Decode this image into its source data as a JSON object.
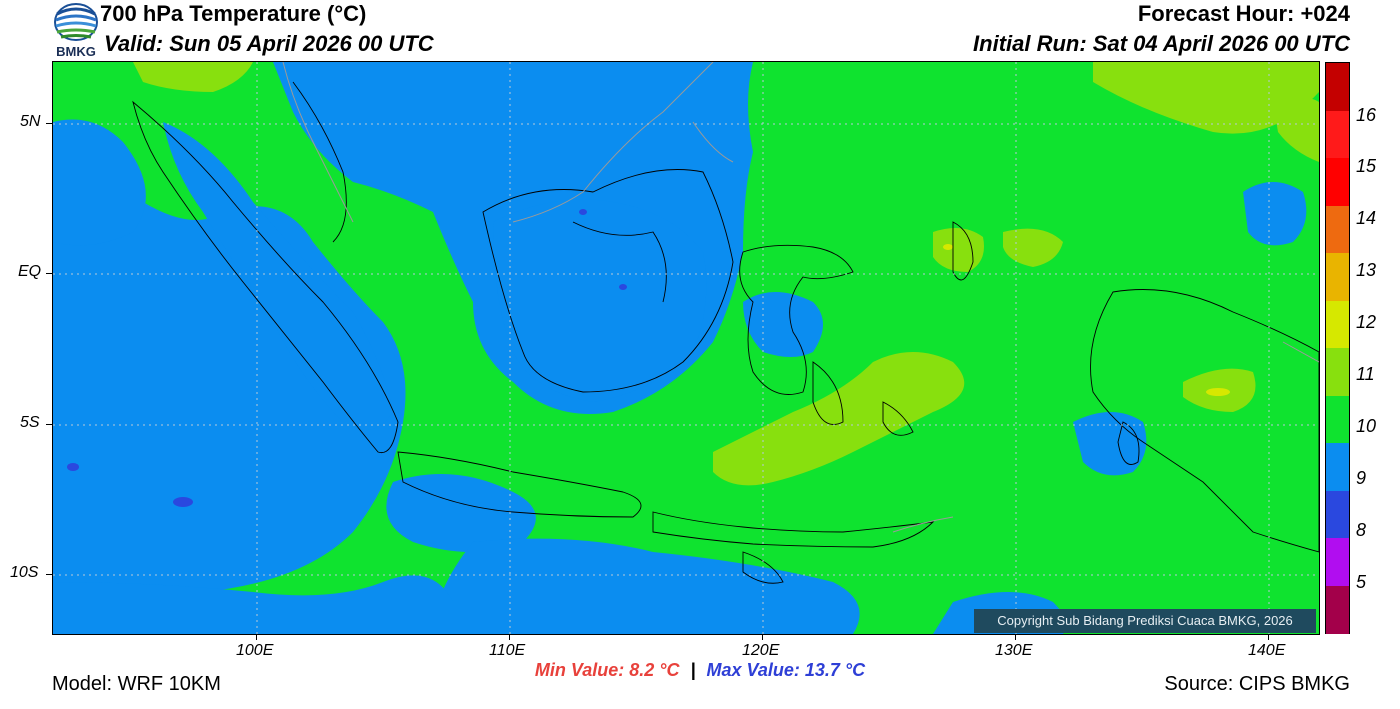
{
  "header": {
    "title": "700 hPa Temperature (°C)",
    "valid": "Valid: Sun 05 April 2026 00 UTC",
    "forecast_hour": "Forecast Hour: +024",
    "initial_run": "Initial Run: Sat 04 April 2026 00 UTC"
  },
  "logo": {
    "text": "BMKG"
  },
  "map": {
    "lat_labels": [
      "5N",
      "EQ",
      "5S",
      "10S"
    ],
    "lon_labels": [
      "100E",
      "110E",
      "120E",
      "130E",
      "140E"
    ],
    "copyright": "Copyright Sub Bidang Prediksi Cuaca BMKG, 2026"
  },
  "colorbar": {
    "labels": [
      "16",
      "15",
      "14",
      "13",
      "12",
      "11",
      "10",
      "9",
      "8",
      "5"
    ],
    "colors": [
      "#c40000",
      "#ff1a1a",
      "#ff0000",
      "#ee6a10",
      "#e9b400",
      "#d6e800",
      "#88e00e",
      "#0fe32f",
      "#0b8df0",
      "#2a48df",
      "#b10df0",
      "#a3004a"
    ]
  },
  "stats": {
    "min": "Min Value: 8.2 °C",
    "separator": "|",
    "max": "Max Value: 13.7 °C"
  },
  "footer": {
    "model": "Model: WRF 10KM",
    "source": "Source: CIPS BMKG"
  }
}
